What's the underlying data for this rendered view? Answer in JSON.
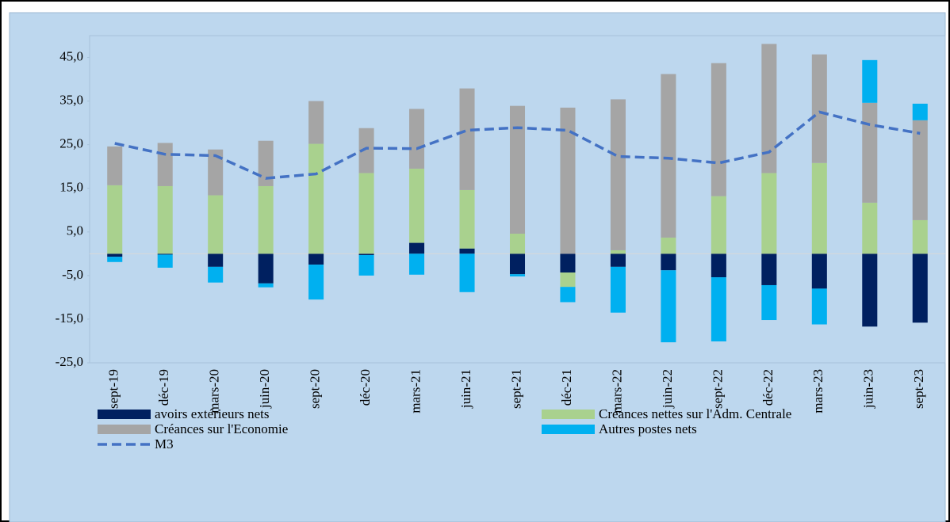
{
  "chart_data": {
    "type": "bar",
    "categories": [
      "sept-19",
      "déc-19",
      "mars-20",
      "juin-20",
      "sept-20",
      "déc-20",
      "mars-21",
      "juin-21",
      "sept-21",
      "déc-21",
      "mars-22",
      "juin-22",
      "sept-22",
      "déc-22",
      "mars-23",
      "juin-23",
      "sept-23"
    ],
    "series": [
      {
        "name": "avoirs extérieurs nets",
        "color": "#002060",
        "values": [
          -0.7,
          -0.2,
          -3.0,
          -6.8,
          -2.5,
          -0.3,
          2.5,
          1.2,
          -4.7,
          -4.3,
          -3.0,
          -3.8,
          -5.4,
          -7.2,
          -8.0,
          -16.7,
          -15.8
        ]
      },
      {
        "name": "Créances nettes sur l'Adm. Centrale",
        "color": "#a9d18e",
        "values": [
          15.7,
          15.5,
          13.4,
          15.5,
          25.2,
          18.5,
          17.0,
          13.4,
          4.6,
          -3.3,
          0.8,
          3.7,
          13.2,
          18.5,
          20.8,
          11.7,
          7.7
        ]
      },
      {
        "name": "Créances  sur l'Economie",
        "color": "#a5a5a5",
        "values": [
          8.9,
          9.9,
          10.5,
          10.4,
          9.8,
          10.3,
          13.7,
          23.3,
          29.3,
          33.5,
          34.6,
          37.5,
          30.5,
          29.6,
          24.9,
          22.9,
          22.9
        ]
      },
      {
        "name": "Autres postes nets",
        "color": "#00b0f0",
        "values": [
          -1.2,
          -3.0,
          -3.6,
          -0.9,
          -8.0,
          -4.7,
          -4.8,
          -8.8,
          -0.5,
          -3.5,
          -10.5,
          -16.5,
          -14.7,
          -8.0,
          -8.2,
          9.8,
          3.8
        ]
      },
      {
        "name": "M3",
        "color": "#4472c4",
        "type": "line",
        "dashed": true,
        "values": [
          25.3,
          22.8,
          22.5,
          17.3,
          18.3,
          24.2,
          24.1,
          28.3,
          28.9,
          28.3,
          22.3,
          21.9,
          20.8,
          23.3,
          32.5,
          29.6,
          27.6
        ]
      }
    ],
    "ylim": [
      -25,
      50
    ],
    "yticks": [
      {
        "value": -25,
        "label": "-25,0"
      },
      {
        "value": -15,
        "label": "-15,0"
      },
      {
        "value": -5,
        "label": "-5,0"
      },
      {
        "value": 5,
        "label": "5,0"
      },
      {
        "value": 15,
        "label": "15,0"
      },
      {
        "value": 25,
        "label": "25,0"
      },
      {
        "value": 35,
        "label": "35,0"
      },
      {
        "value": 45,
        "label": "45,0"
      }
    ],
    "stacked": true
  }
}
